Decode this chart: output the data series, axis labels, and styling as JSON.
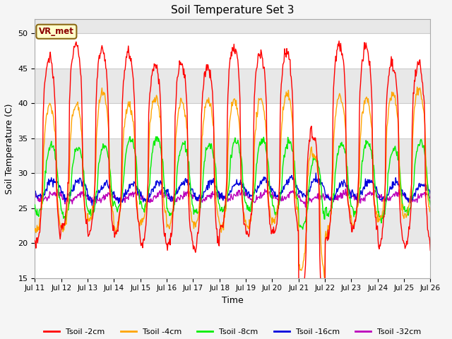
{
  "title": "Soil Temperature Set 3",
  "xlabel": "Time",
  "ylabel": "Soil Temperature (C)",
  "ylim": [
    15,
    52
  ],
  "yticks": [
    15,
    20,
    25,
    30,
    35,
    40,
    45,
    50
  ],
  "xtick_labels": [
    "Jul 11",
    "Jul 12",
    "Jul 13",
    "Jul 14",
    "Jul 15",
    "Jul 16",
    "Jul 17",
    "Jul 18",
    "Jul 19",
    "Jul 20",
    "Jul 21",
    "Jul 22",
    "Jul 23",
    "Jul 24",
    "Jul 25",
    "Jul 26"
  ],
  "colors": {
    "Tsoil -2cm": "#ff0000",
    "Tsoil -4cm": "#ffa500",
    "Tsoil -8cm": "#00ee00",
    "Tsoil -16cm": "#0000dd",
    "Tsoil -32cm": "#bb00bb"
  },
  "legend_label": "VR_met",
  "bg_color": "#e8e8e8",
  "band_color": "#d4d4d4",
  "grid_color": "#ffffff"
}
